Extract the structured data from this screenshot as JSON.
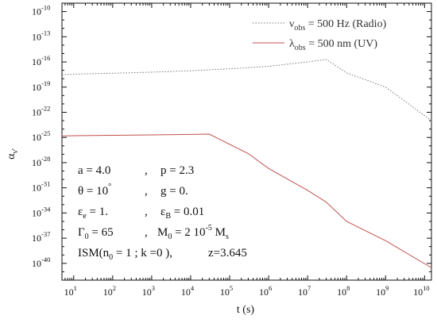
{
  "chart_data": {
    "type": "line",
    "title": "",
    "xlabel": "t (s)",
    "ylabel": "αν'",
    "x_scale": "log",
    "y_scale": "log",
    "xlim": [
      5,
      15000000000
    ],
    "ylim": [
      1e-42,
      1e-09
    ],
    "x_ticks": [
      {
        "base": "10",
        "exp": "1"
      },
      {
        "base": "10",
        "exp": "2"
      },
      {
        "base": "10",
        "exp": "3"
      },
      {
        "base": "10",
        "exp": "4"
      },
      {
        "base": "10",
        "exp": "5"
      },
      {
        "base": "10",
        "exp": "6"
      },
      {
        "base": "10",
        "exp": "7"
      },
      {
        "base": "10",
        "exp": "8"
      },
      {
        "base": "10",
        "exp": "9"
      },
      {
        "base": "10",
        "exp": "10"
      }
    ],
    "y_ticks": [
      {
        "base": "10",
        "exp": "-10"
      },
      {
        "base": "10",
        "exp": "-13"
      },
      {
        "base": "10",
        "exp": "-16"
      },
      {
        "base": "10",
        "exp": "-19"
      },
      {
        "base": "10",
        "exp": "-22"
      },
      {
        "base": "10",
        "exp": "-25"
      },
      {
        "base": "10",
        "exp": "-28"
      },
      {
        "base": "10",
        "exp": "-31"
      },
      {
        "base": "10",
        "exp": "-34"
      },
      {
        "base": "10",
        "exp": "-37"
      },
      {
        "base": "10",
        "exp": "-40"
      }
    ],
    "grid": false,
    "legend_position": "top-right",
    "series": [
      {
        "name": "νobs = 500 Hz (Radio)",
        "legend": {
          "sym": "ν",
          "sub": "obs",
          "rest": " = 500 Hz (Radio)"
        },
        "color": "#777777",
        "style": "dotted",
        "x": [
          5,
          10,
          100,
          1000,
          10000,
          100000,
          1000000,
          10000000,
          30000000,
          100000000,
          1000000000,
          15000000000
        ],
        "y": [
          3e-18,
          3.5e-18,
          4.5e-18,
          6e-18,
          9e-18,
          1.5e-17,
          3e-17,
          1e-16,
          2e-16,
          5e-18,
          1e-19,
          1e-23
        ]
      },
      {
        "name": "λobs = 500 nm (UV)",
        "legend": {
          "sym": "λ",
          "sub": "obs",
          "rest": " = 500 nm (UV)"
        },
        "color": "#c0504d",
        "style": "solid",
        "x": [
          5,
          10,
          100,
          1000,
          10000,
          30000,
          300000,
          1000000,
          10000000,
          30000000,
          100000000,
          1000000000,
          15000000000
        ],
        "y": [
          1.5e-25,
          1.6e-25,
          1.8e-25,
          2e-25,
          2.3e-25,
          2.5e-25,
          1.2e-27,
          2e-29,
          5e-32,
          2e-33,
          1e-35,
          5e-38,
          3e-41
        ]
      }
    ],
    "annotations": [
      "a = 4.0 , p = 2.3",
      "θ = 10° , g = 0.",
      "εe = 1. , εB = 0.01",
      "Γ0 = 65 , M0 = 2 10-5 Ms",
      "ISM(n0 = 1 ; k =0 ), z=3.645"
    ]
  }
}
